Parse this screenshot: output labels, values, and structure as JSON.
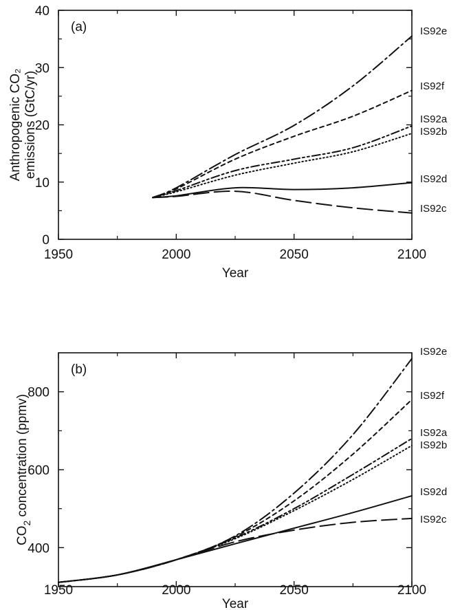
{
  "chart_data": [
    {
      "type": "line",
      "panel_label": "(a)",
      "xlabel": "Year",
      "ylabel_lines": [
        "Anthropogenic CO₂",
        "emissions (GtC/yr)"
      ],
      "xlim": [
        1950,
        2100
      ],
      "ylim": [
        0,
        40
      ],
      "xticks": [
        1950,
        2000,
        2050,
        2100
      ],
      "yticks": [
        0,
        10,
        20,
        30,
        40
      ],
      "grid": false,
      "series": [
        {
          "name": "IS92e",
          "dash": "dash-dot",
          "x": [
            1990,
            2000,
            2025,
            2050,
            2075,
            2100
          ],
          "y": [
            7.3,
            9.0,
            14.8,
            19.9,
            26.8,
            35.5
          ]
        },
        {
          "name": "IS92f",
          "dash": "short-dash",
          "x": [
            1990,
            2000,
            2025,
            2050,
            2075,
            2100
          ],
          "y": [
            7.3,
            8.8,
            14.0,
            18.0,
            21.5,
            26.0
          ]
        },
        {
          "name": "IS92a",
          "dash": "dash-dot-dot",
          "x": [
            1990,
            2000,
            2025,
            2050,
            2075,
            2100
          ],
          "y": [
            7.3,
            8.5,
            12.0,
            14.0,
            16.0,
            19.8
          ]
        },
        {
          "name": "IS92b",
          "dash": "dotted",
          "x": [
            1990,
            2000,
            2025,
            2050,
            2075,
            2100
          ],
          "y": [
            7.3,
            8.3,
            11.2,
            13.3,
            15.3,
            18.5
          ]
        },
        {
          "name": "IS92d",
          "dash": "solid",
          "x": [
            1990,
            2000,
            2025,
            2050,
            2075,
            2100
          ],
          "y": [
            7.3,
            7.6,
            9.0,
            8.7,
            9.0,
            9.9
          ]
        },
        {
          "name": "IS92c",
          "dash": "long-dash",
          "x": [
            1990,
            2000,
            2025,
            2050,
            2075,
            2100
          ],
          "y": [
            7.3,
            7.5,
            8.4,
            6.8,
            5.5,
            4.6
          ]
        }
      ]
    },
    {
      "type": "line",
      "panel_label": "(b)",
      "xlabel": "Year",
      "ylabel_main": "CO",
      "ylabel_sub": "2",
      "ylabel_rest": " concentration (ppmv)",
      "xlim": [
        1950,
        2100
      ],
      "ylim": [
        300,
        900
      ],
      "xticks": [
        1950,
        2000,
        2050,
        2100
      ],
      "yticks": [
        400,
        600,
        800
      ],
      "grid": false,
      "series": [
        {
          "name": "IS92e",
          "dash": "dash-dot",
          "x": [
            1950,
            1975,
            2000,
            2025,
            2050,
            2075,
            2100
          ],
          "y": [
            311,
            330,
            369,
            430,
            540,
            690,
            885
          ]
        },
        {
          "name": "IS92f",
          "dash": "short-dash",
          "x": [
            1950,
            1975,
            2000,
            2025,
            2050,
            2075,
            2100
          ],
          "y": [
            311,
            330,
            369,
            428,
            520,
            640,
            780
          ]
        },
        {
          "name": "IS92a",
          "dash": "dash-dot-dot",
          "x": [
            1950,
            1975,
            2000,
            2025,
            2050,
            2075,
            2100
          ],
          "y": [
            311,
            330,
            369,
            425,
            500,
            588,
            680
          ]
        },
        {
          "name": "IS92b",
          "dash": "dotted",
          "x": [
            1950,
            1975,
            2000,
            2025,
            2050,
            2075,
            2100
          ],
          "y": [
            311,
            330,
            369,
            423,
            495,
            575,
            662
          ]
        },
        {
          "name": "IS92d",
          "dash": "solid",
          "x": [
            1950,
            1975,
            2000,
            2025,
            2050,
            2075,
            2100
          ],
          "y": [
            311,
            330,
            369,
            410,
            450,
            490,
            533
          ]
        },
        {
          "name": "IS92c",
          "dash": "long-dash",
          "x": [
            1950,
            1975,
            2000,
            2025,
            2050,
            2075,
            2100
          ],
          "y": [
            311,
            330,
            369,
            415,
            445,
            465,
            475
          ]
        }
      ]
    }
  ]
}
